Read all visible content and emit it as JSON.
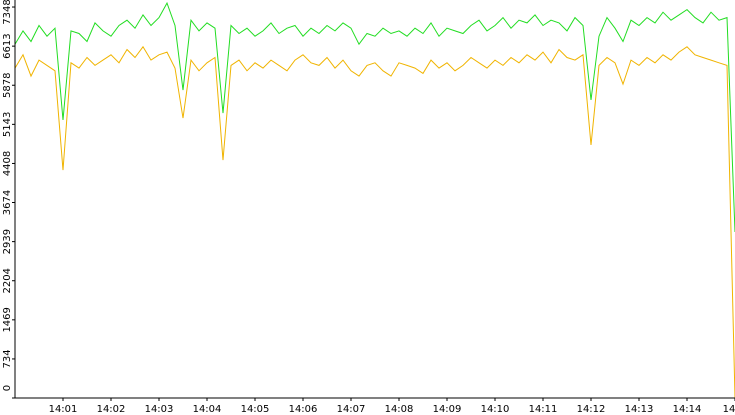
{
  "chart_data": {
    "type": "line",
    "x": [
      0,
      10,
      20,
      30,
      40,
      50,
      60,
      70,
      80,
      90,
      100,
      110,
      120,
      130,
      140,
      150,
      160,
      170,
      180,
      190,
      200,
      210,
      220,
      230,
      240,
      250,
      260,
      270,
      280,
      290,
      300,
      310,
      320,
      330,
      340,
      350,
      360,
      370,
      380,
      390,
      400,
      410,
      420,
      430,
      440,
      450,
      460,
      470,
      480,
      490,
      500,
      510,
      520,
      530,
      540,
      550,
      560,
      570,
      580,
      590,
      600,
      610,
      620,
      630,
      640,
      650,
      660,
      670,
      680,
      690,
      700,
      710,
      720,
      730,
      740,
      750,
      760,
      770,
      780,
      790,
      800,
      810,
      820,
      830,
      840,
      850,
      860,
      870,
      880,
      890,
      900
    ],
    "series": [
      {
        "color": "#22dd22",
        "values": [
          6650,
          6900,
          6700,
          7000,
          6800,
          6950,
          5224,
          6900,
          6850,
          6700,
          7050,
          6900,
          6800,
          7000,
          7100,
          6950,
          7200,
          7000,
          7150,
          7422,
          7000,
          5787,
          7100,
          6900,
          7050,
          6950,
          5355,
          7000,
          6850,
          6950,
          6800,
          6900,
          7050,
          6850,
          6950,
          7000,
          6800,
          6950,
          6850,
          7000,
          6900,
          7050,
          6950,
          6650,
          6850,
          6800,
          6950,
          6850,
          6900,
          6800,
          6950,
          6850,
          7050,
          6800,
          6950,
          6900,
          6850,
          7000,
          7100,
          6900,
          7000,
          7150,
          6950,
          7100,
          7050,
          7200,
          7000,
          7100,
          7050,
          6900,
          7150,
          7000,
          5600,
          6800,
          7150,
          6950,
          6700,
          7100,
          7000,
          7150,
          7050,
          7250,
          7100,
          7200,
          7300,
          7150,
          7050,
          7250,
          7100,
          7150,
          3119
        ]
      },
      {
        "color": "#f0b400",
        "values": [
          6200,
          6450,
          6050,
          6350,
          6250,
          6150,
          4284,
          6300,
          6200,
          6400,
          6250,
          6350,
          6450,
          6300,
          6550,
          6400,
          6600,
          6350,
          6450,
          6500,
          6200,
          5261,
          6350,
          6150,
          6300,
          6400,
          4472,
          6250,
          6350,
          6150,
          6300,
          6200,
          6350,
          6250,
          6150,
          6350,
          6450,
          6300,
          6250,
          6400,
          6200,
          6350,
          6150,
          6050,
          6250,
          6300,
          6150,
          6050,
          6300,
          6250,
          6200,
          6100,
          6350,
          6200,
          6300,
          6150,
          6250,
          6400,
          6300,
          6200,
          6350,
          6250,
          6400,
          6300,
          6450,
          6350,
          6500,
          6300,
          6550,
          6400,
          6350,
          6450,
          4754,
          6250,
          6400,
          6300,
          5900,
          6350,
          6250,
          6400,
          6300,
          6450,
          6350,
          6500,
          6600,
          6450,
          6400,
          6350,
          6300,
          6250,
          0
        ]
      }
    ],
    "xlim": [
      0,
      900
    ],
    "xticks": [
      {
        "value": 60,
        "label": "14:01"
      },
      {
        "value": 120,
        "label": "14:02"
      },
      {
        "value": 180,
        "label": "14:03"
      },
      {
        "value": 240,
        "label": "14:04"
      },
      {
        "value": 300,
        "label": "14:05"
      },
      {
        "value": 360,
        "label": "14:06"
      },
      {
        "value": 420,
        "label": "14:07"
      },
      {
        "value": 480,
        "label": "14:08"
      },
      {
        "value": 540,
        "label": "14:09"
      },
      {
        "value": 600,
        "label": "14:10"
      },
      {
        "value": 660,
        "label": "14:11"
      },
      {
        "value": 720,
        "label": "14:12"
      },
      {
        "value": 780,
        "label": "14:13"
      },
      {
        "value": 840,
        "label": "14:14"
      },
      {
        "value": 900,
        "label": "14"
      }
    ],
    "ylim": [
      0,
      7480
    ],
    "yticks": [
      0,
      734,
      1469,
      2204,
      2939,
      3674,
      4408,
      5143,
      5878,
      6613,
      7348
    ],
    "grid": false
  }
}
